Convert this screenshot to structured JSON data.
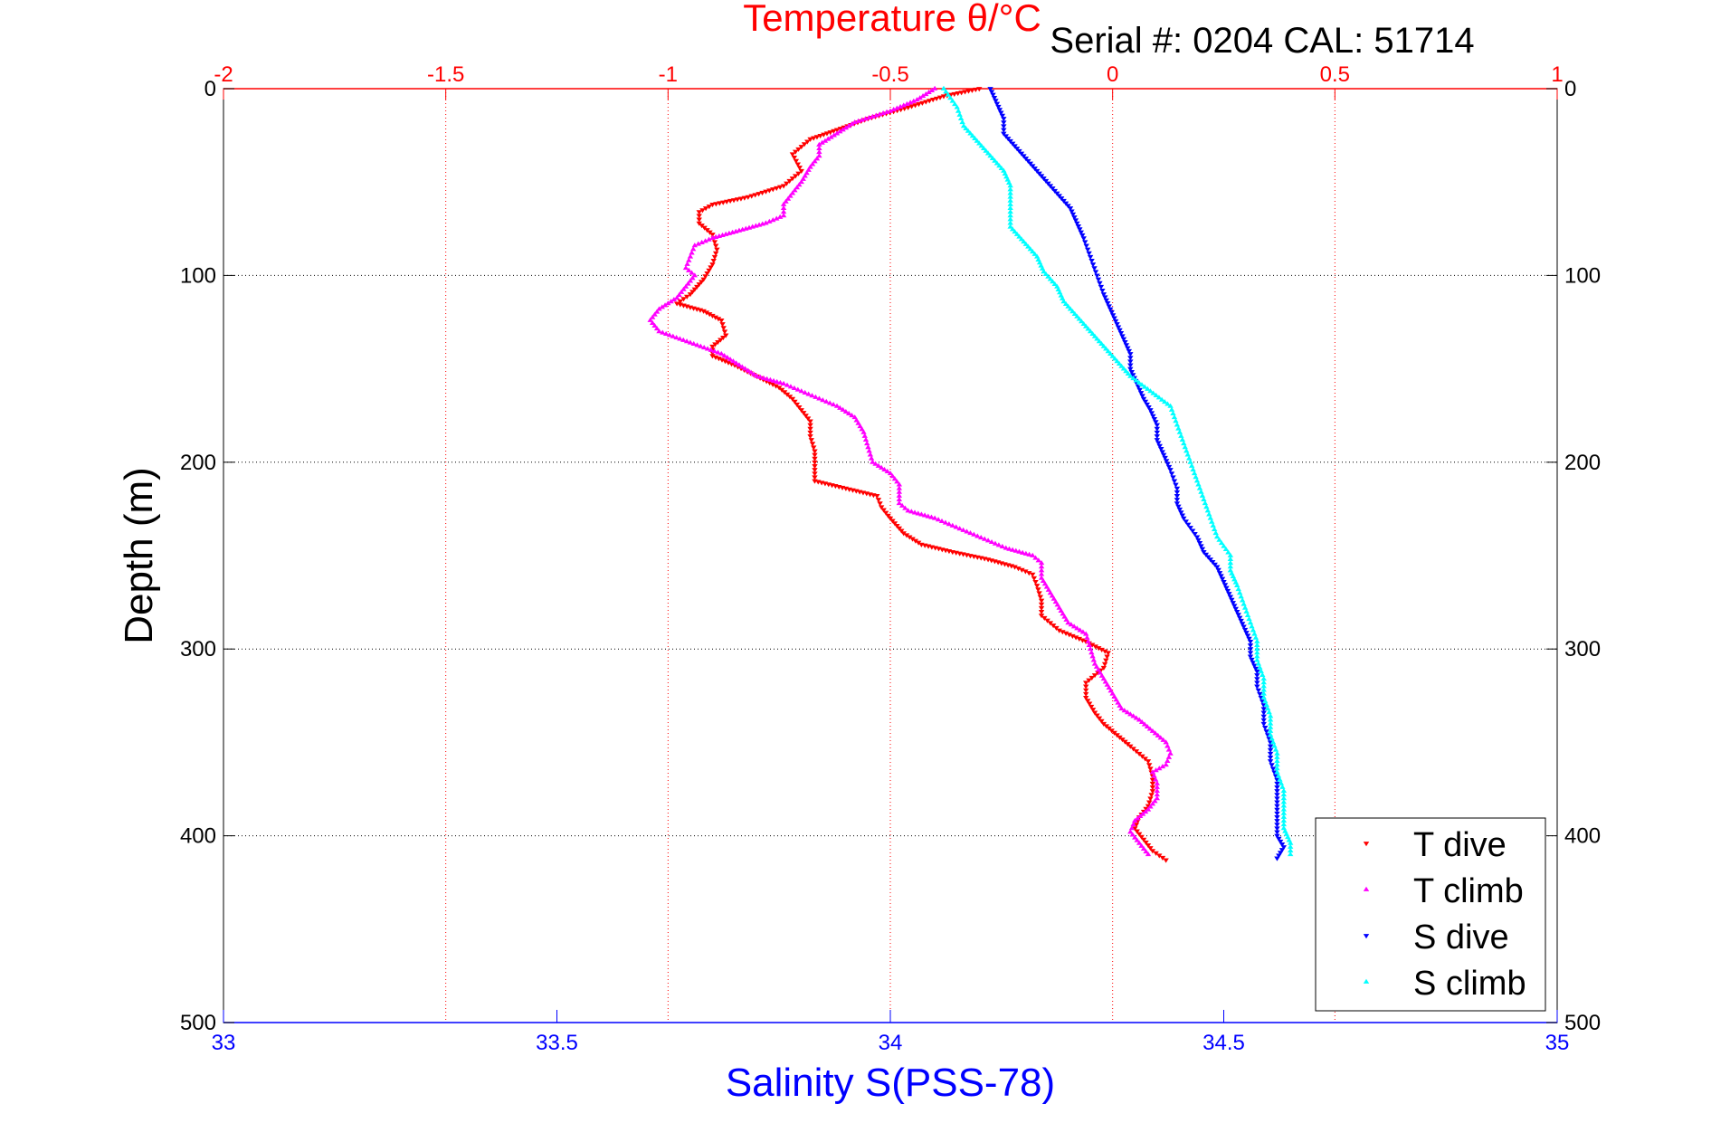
{
  "chart_data": {
    "type": "scatter",
    "serial_text": "Serial #: 0204  CAL: 51714",
    "y_axis": {
      "label": "Depth (m)",
      "range": [
        0,
        500
      ],
      "reversed": true,
      "ticks": [
        0,
        100,
        200,
        300,
        400,
        500
      ],
      "tick_labels": [
        "0",
        "100",
        "200",
        "300",
        "400",
        "500"
      ],
      "grid": true
    },
    "x_axis_top": {
      "label": "Temperature θ/°C",
      "range": [
        -2,
        1
      ],
      "ticks": [
        -2,
        -1.5,
        -1,
        -0.5,
        0,
        0.5,
        1
      ],
      "tick_labels": [
        "-2",
        "-1.5",
        "-1",
        "-0.5",
        "0",
        "0.5",
        "1"
      ],
      "grid": true,
      "color": "#ff0000"
    },
    "x_axis_bottom": {
      "label": "Salinity S(PSS-78)",
      "range": [
        33,
        35
      ],
      "ticks": [
        33,
        33.5,
        34,
        34.5,
        35
      ],
      "tick_labels": [
        "33",
        "33.5",
        "34",
        "34.5",
        "35"
      ],
      "color": "#0000ff"
    },
    "legend": {
      "placement": "lower-right",
      "entries": [
        "T dive",
        "T climb",
        "S dive",
        "S climb"
      ]
    },
    "series": [
      {
        "name": "T dive",
        "axis": "temperature",
        "color": "#ff0000",
        "marker": "down-triangle",
        "points": [
          [
            -0.3,
            0
          ],
          [
            -0.38,
            4
          ],
          [
            -0.46,
            10
          ],
          [
            -0.55,
            16
          ],
          [
            -0.62,
            22
          ],
          [
            -0.68,
            27
          ],
          [
            -0.72,
            35
          ],
          [
            -0.7,
            44
          ],
          [
            -0.74,
            52
          ],
          [
            -0.82,
            58
          ],
          [
            -0.9,
            62
          ],
          [
            -0.93,
            66
          ],
          [
            -0.93,
            72
          ],
          [
            -0.9,
            78
          ],
          [
            -0.89,
            86
          ],
          [
            -0.9,
            94
          ],
          [
            -0.92,
            102
          ],
          [
            -0.95,
            110
          ],
          [
            -0.98,
            115
          ],
          [
            -0.92,
            119
          ],
          [
            -0.88,
            124
          ],
          [
            -0.87,
            132
          ],
          [
            -0.9,
            138
          ],
          [
            -0.9,
            143
          ],
          [
            -0.85,
            148
          ],
          [
            -0.8,
            154
          ],
          [
            -0.75,
            160
          ],
          [
            -0.72,
            166
          ],
          [
            -0.7,
            172
          ],
          [
            -0.68,
            178
          ],
          [
            -0.68,
            186
          ],
          [
            -0.67,
            194
          ],
          [
            -0.67,
            202
          ],
          [
            -0.67,
            210
          ],
          [
            -0.6,
            214
          ],
          [
            -0.53,
            218
          ],
          [
            -0.52,
            224
          ],
          [
            -0.5,
            230
          ],
          [
            -0.47,
            238
          ],
          [
            -0.43,
            244
          ],
          [
            -0.36,
            248
          ],
          [
            -0.28,
            252
          ],
          [
            -0.22,
            256
          ],
          [
            -0.18,
            260
          ],
          [
            -0.17,
            266
          ],
          [
            -0.16,
            274
          ],
          [
            -0.16,
            282
          ],
          [
            -0.12,
            290
          ],
          [
            -0.06,
            296
          ],
          [
            -0.01,
            302
          ],
          [
            -0.02,
            310
          ],
          [
            -0.06,
            318
          ],
          [
            -0.06,
            326
          ],
          [
            -0.04,
            334
          ],
          [
            -0.02,
            340
          ],
          [
            0.01,
            346
          ],
          [
            0.04,
            352
          ],
          [
            0.08,
            360
          ],
          [
            0.09,
            368
          ],
          [
            0.09,
            376
          ],
          [
            0.08,
            384
          ],
          [
            0.06,
            390
          ],
          [
            0.05,
            396
          ],
          [
            0.07,
            402
          ],
          [
            0.09,
            408
          ],
          [
            0.12,
            413
          ]
        ]
      },
      {
        "name": "T climb",
        "axis": "temperature",
        "color": "#ff00ff",
        "marker": "up-triangle",
        "points": [
          [
            -0.4,
            0
          ],
          [
            -0.44,
            6
          ],
          [
            -0.5,
            12
          ],
          [
            -0.58,
            18
          ],
          [
            -0.62,
            24
          ],
          [
            -0.66,
            30
          ],
          [
            -0.66,
            36
          ],
          [
            -0.68,
            42
          ],
          [
            -0.7,
            50
          ],
          [
            -0.72,
            56
          ],
          [
            -0.74,
            62
          ],
          [
            -0.74,
            68
          ],
          [
            -0.78,
            72
          ],
          [
            -0.84,
            76
          ],
          [
            -0.9,
            80
          ],
          [
            -0.94,
            84
          ],
          [
            -0.95,
            90
          ],
          [
            -0.96,
            96
          ],
          [
            -0.94,
            100
          ],
          [
            -0.96,
            106
          ],
          [
            -0.98,
            112
          ],
          [
            -1.02,
            118
          ],
          [
            -1.04,
            124
          ],
          [
            -1.02,
            130
          ],
          [
            -0.95,
            136
          ],
          [
            -0.88,
            142
          ],
          [
            -0.84,
            148
          ],
          [
            -0.8,
            154
          ],
          [
            -0.74,
            158
          ],
          [
            -0.7,
            162
          ],
          [
            -0.66,
            166
          ],
          [
            -0.62,
            170
          ],
          [
            -0.58,
            176
          ],
          [
            -0.56,
            184
          ],
          [
            -0.55,
            192
          ],
          [
            -0.54,
            200
          ],
          [
            -0.5,
            206
          ],
          [
            -0.48,
            212
          ],
          [
            -0.48,
            218
          ],
          [
            -0.48,
            222
          ],
          [
            -0.46,
            226
          ],
          [
            -0.4,
            230
          ],
          [
            -0.36,
            234
          ],
          [
            -0.32,
            238
          ],
          [
            -0.28,
            242
          ],
          [
            -0.24,
            246
          ],
          [
            -0.18,
            250
          ],
          [
            -0.16,
            254
          ],
          [
            -0.16,
            262
          ],
          [
            -0.14,
            270
          ],
          [
            -0.12,
            278
          ],
          [
            -0.1,
            286
          ],
          [
            -0.06,
            292
          ],
          [
            -0.05,
            300
          ],
          [
            -0.04,
            308
          ],
          [
            -0.02,
            316
          ],
          [
            0.0,
            324
          ],
          [
            0.02,
            332
          ],
          [
            0.06,
            338
          ],
          [
            0.09,
            344
          ],
          [
            0.12,
            350
          ],
          [
            0.13,
            356
          ],
          [
            0.12,
            362
          ],
          [
            0.09,
            366
          ],
          [
            0.1,
            372
          ],
          [
            0.1,
            380
          ],
          [
            0.08,
            386
          ],
          [
            0.05,
            392
          ],
          [
            0.04,
            398
          ],
          [
            0.06,
            404
          ],
          [
            0.08,
            410
          ]
        ]
      },
      {
        "name": "S dive",
        "axis": "salinity",
        "color": "#0000ff",
        "marker": "down-triangle",
        "points": [
          [
            34.15,
            0
          ],
          [
            34.16,
            8
          ],
          [
            34.17,
            16
          ],
          [
            34.17,
            24
          ],
          [
            34.19,
            32
          ],
          [
            34.21,
            40
          ],
          [
            34.23,
            48
          ],
          [
            34.25,
            56
          ],
          [
            34.27,
            64
          ],
          [
            34.28,
            72
          ],
          [
            34.29,
            80
          ],
          [
            34.3,
            90
          ],
          [
            34.31,
            100
          ],
          [
            34.32,
            110
          ],
          [
            34.33,
            118
          ],
          [
            34.34,
            126
          ],
          [
            34.35,
            134
          ],
          [
            34.36,
            142
          ],
          [
            34.36,
            150
          ],
          [
            34.37,
            158
          ],
          [
            34.38,
            166
          ],
          [
            34.39,
            172
          ],
          [
            34.4,
            180
          ],
          [
            34.4,
            188
          ],
          [
            34.41,
            196
          ],
          [
            34.42,
            204
          ],
          [
            34.43,
            214
          ],
          [
            34.43,
            222
          ],
          [
            34.44,
            230
          ],
          [
            34.46,
            240
          ],
          [
            34.47,
            248
          ],
          [
            34.49,
            256
          ],
          [
            34.5,
            264
          ],
          [
            34.51,
            272
          ],
          [
            34.52,
            280
          ],
          [
            34.53,
            288
          ],
          [
            34.54,
            296
          ],
          [
            34.54,
            304
          ],
          [
            34.55,
            312
          ],
          [
            34.55,
            320
          ],
          [
            34.56,
            330
          ],
          [
            34.56,
            340
          ],
          [
            34.57,
            350
          ],
          [
            34.57,
            360
          ],
          [
            34.58,
            370
          ],
          [
            34.58,
            380
          ],
          [
            34.58,
            390
          ],
          [
            34.58,
            400
          ],
          [
            34.59,
            406
          ],
          [
            34.58,
            412
          ]
        ]
      },
      {
        "name": "S climb",
        "axis": "salinity",
        "color": "#00ffff",
        "marker": "up-triangle",
        "points": [
          [
            34.08,
            0
          ],
          [
            34.1,
            10
          ],
          [
            34.11,
            20
          ],
          [
            34.13,
            28
          ],
          [
            34.15,
            36
          ],
          [
            34.17,
            44
          ],
          [
            34.18,
            52
          ],
          [
            34.18,
            60
          ],
          [
            34.18,
            68
          ],
          [
            34.18,
            74
          ],
          [
            34.2,
            82
          ],
          [
            34.22,
            90
          ],
          [
            34.23,
            98
          ],
          [
            34.25,
            106
          ],
          [
            34.26,
            114
          ],
          [
            34.28,
            122
          ],
          [
            34.3,
            130
          ],
          [
            34.32,
            138
          ],
          [
            34.34,
            146
          ],
          [
            34.36,
            154
          ],
          [
            34.39,
            162
          ],
          [
            34.42,
            170
          ],
          [
            34.43,
            180
          ],
          [
            34.44,
            190
          ],
          [
            34.45,
            200
          ],
          [
            34.46,
            210
          ],
          [
            34.47,
            220
          ],
          [
            34.48,
            230
          ],
          [
            34.49,
            240
          ],
          [
            34.51,
            250
          ],
          [
            34.51,
            258
          ],
          [
            34.52,
            266
          ],
          [
            34.53,
            276
          ],
          [
            34.54,
            286
          ],
          [
            34.55,
            296
          ],
          [
            34.55,
            306
          ],
          [
            34.56,
            316
          ],
          [
            34.56,
            326
          ],
          [
            34.57,
            336
          ],
          [
            34.57,
            346
          ],
          [
            34.58,
            356
          ],
          [
            34.58,
            366
          ],
          [
            34.59,
            376
          ],
          [
            34.59,
            386
          ],
          [
            34.59,
            396
          ],
          [
            34.6,
            404
          ],
          [
            34.6,
            410
          ]
        ]
      }
    ]
  }
}
